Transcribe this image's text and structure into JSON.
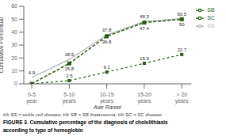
{
  "chart_data": {
    "type": "line",
    "categories": [
      "0-5\nyear",
      "5-10\nyears",
      "10-15\nyears",
      "15-20\nyears",
      "> 20\nyears"
    ],
    "series": [
      {
        "name": "SS",
        "color": "#b0b0b0",
        "line_style": "solid",
        "marker": "none",
        "values": [
          4.9,
          18.9,
          37.8,
          48.3,
          50.5
        ]
      },
      {
        "name": "SB",
        "color": "#2a5a18",
        "line_style": "dashed",
        "marker": "square",
        "values": [
          0,
          15.8,
          36.8,
          47.4,
          50
        ],
        "value_labels": [
          null,
          "15.8",
          "36.8",
          "47.4",
          "50"
        ]
      },
      {
        "name": "SC",
        "color": "#2a5a18",
        "line_style": "dashed",
        "marker": "square",
        "values": [
          0,
          2.5,
          9.1,
          15.9,
          22.7
        ],
        "value_labels": [
          null,
          "2.5",
          "9.1",
          "15.9",
          "22.7"
        ]
      }
    ],
    "xlabel": "Age Range",
    "ylabel": "Cumulative Percentual",
    "ylim": [
      0,
      60
    ],
    "yticks": [
      0,
      10,
      20,
      30,
      40,
      50,
      60
    ],
    "data_labels": true,
    "legend": "right",
    "grid": false,
    "annotations": [
      "Hb SS = sickle cell disease; Hb SB = SB thalassemia; Hb SC = SC disease",
      "FIGURE 3. Cumulative percentage of the diagnosis of cholelithiasis",
      "according to type of hemoglobin"
    ]
  }
}
